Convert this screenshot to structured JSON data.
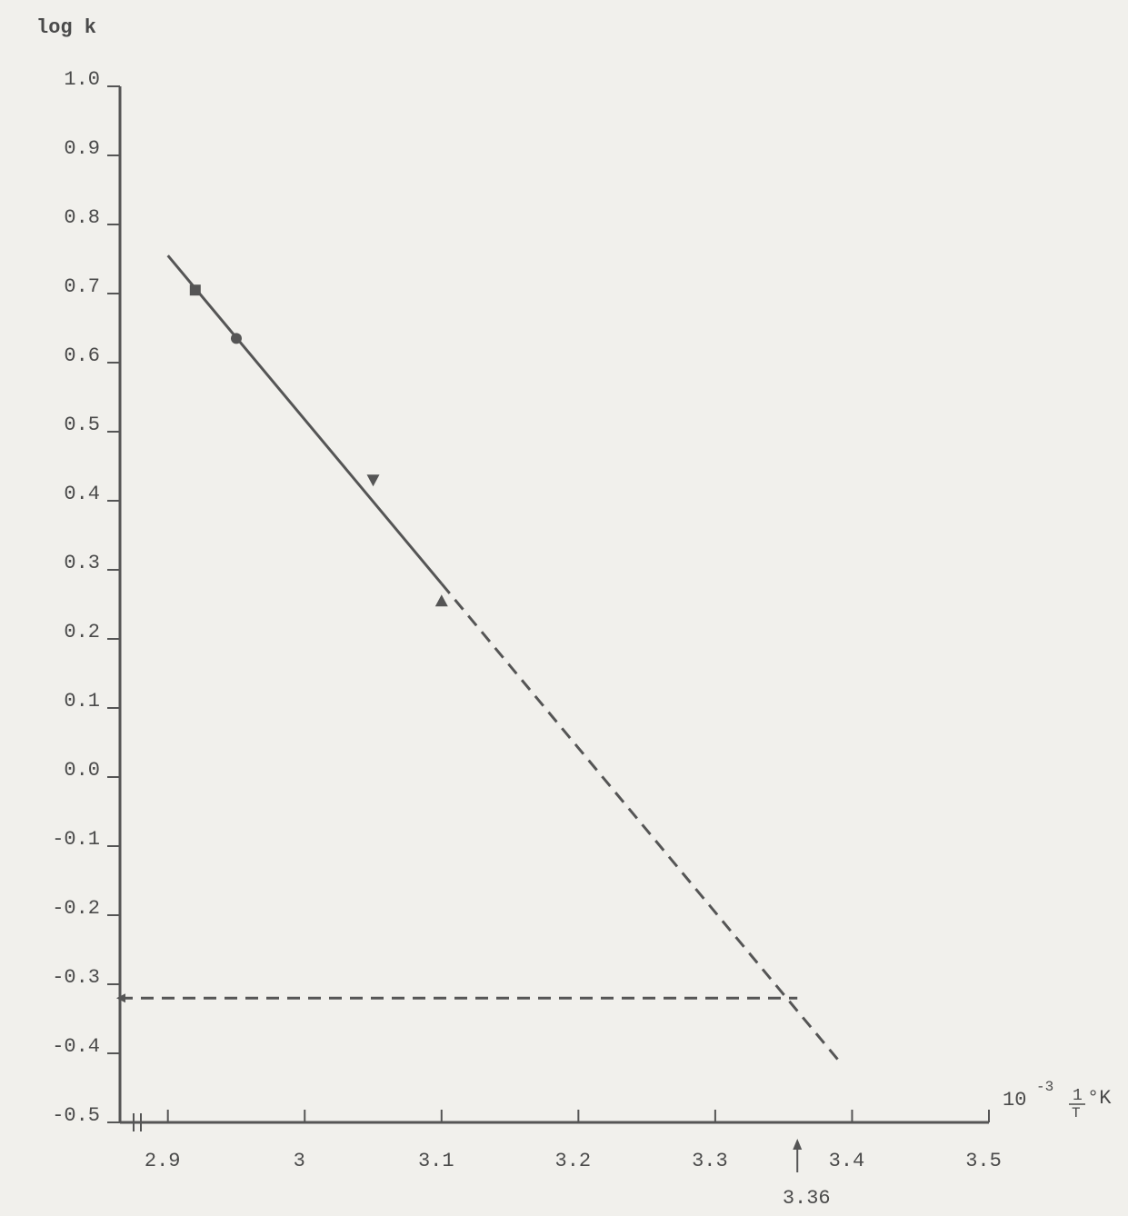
{
  "chart_data": {
    "type": "scatter",
    "y_label": "log k",
    "x_label_base": "10",
    "x_label_exp": "-3",
    "x_label_num": "1",
    "x_label_den": "T",
    "x_label_unit": "°K",
    "xlim": [
      2.865,
      3.5
    ],
    "xticks": [
      2.9,
      3.0,
      3.1,
      3.2,
      3.3,
      3.4,
      3.5
    ],
    "ylim": [
      -0.5,
      1.0
    ],
    "yticks": [
      {
        "value": -0.5,
        "label": "-0.5"
      },
      -0.4,
      -0.3,
      -0.2,
      -0.1,
      {
        "value": 0,
        "label": "0.0"
      },
      0.1,
      0.2,
      0.3,
      0.4,
      0.5,
      0.6,
      0.7,
      0.8,
      0.9,
      {
        "value": 1.0,
        "label": "1.0"
      }
    ],
    "color": "#555555",
    "points": [
      {
        "marker": "square",
        "x": 2.92,
        "y": 0.705
      },
      {
        "marker": "circle",
        "x": 2.95,
        "y": 0.635
      },
      {
        "marker": "triangle-down",
        "x": 3.05,
        "y": 0.43
      },
      {
        "marker": "triangle-up",
        "x": 3.1,
        "y": 0.255
      }
    ],
    "fit_solid": {
      "x": [
        2.9,
        3.1
      ],
      "y": [
        0.755,
        0.28
      ]
    },
    "fit_dashed": {
      "x": [
        3.1,
        3.39
      ],
      "y": [
        0.28,
        -0.41
      ]
    },
    "reference_dashed": {
      "x": [
        2.865,
        3.36
      ],
      "y": [
        -0.32,
        -0.32
      ]
    },
    "annotation_x": 3.36
  }
}
